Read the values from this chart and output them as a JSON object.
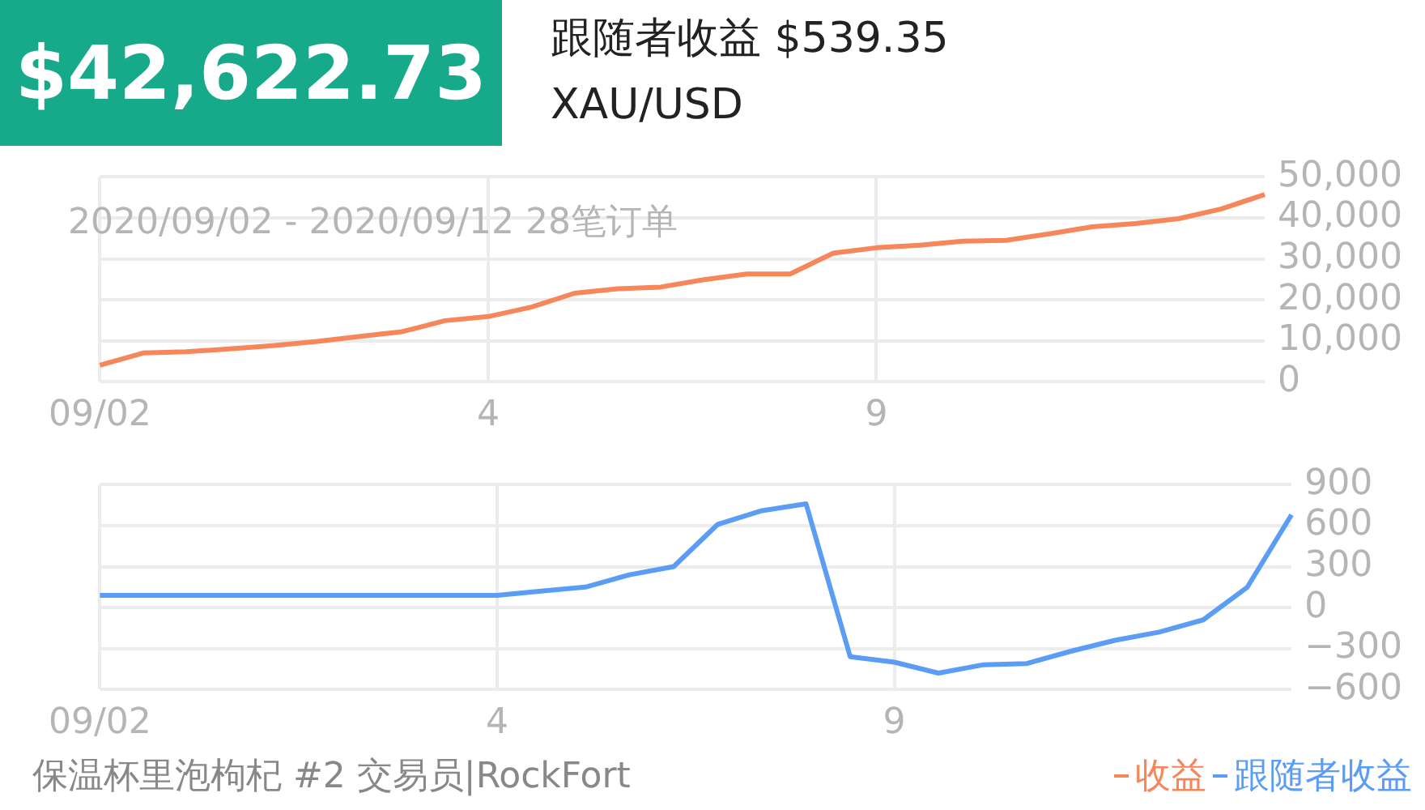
{
  "chart_data": [
    {
      "type": "line",
      "title": "$42,622.73",
      "subtitle": "跟随者收益 $539.35",
      "annotations": [
        "XAU/USD",
        "2020/09/02 - 2020/09/12 28笔订单"
      ],
      "categories": [
        "09/02",
        null,
        null,
        null,
        null,
        null,
        null,
        null,
        null,
        "4",
        null,
        null,
        null,
        null,
        null,
        null,
        null,
        null,
        "9",
        null,
        null,
        null,
        null,
        null,
        null,
        null,
        null,
        null
      ],
      "series": [
        {
          "name": "收益",
          "color": "#f5875a",
          "values": [
            4000,
            7000,
            7300,
            8000,
            8800,
            9800,
            11000,
            12200,
            14900,
            15900,
            18200,
            21600,
            22700,
            23100,
            24900,
            26300,
            26300,
            31400,
            32700,
            33300,
            34300,
            34500,
            36100,
            37800,
            38600,
            39800,
            42200,
            45700
          ]
        }
      ],
      "ylim": [
        0,
        50000
      ],
      "yticks": [
        {
          "value": 0,
          "label": "0"
        },
        {
          "value": 10000,
          "label": "10,000"
        },
        {
          "value": 20000,
          "label": "20,000"
        },
        {
          "value": 30000,
          "label": "30,000"
        },
        {
          "value": 40000,
          "label": "40,000"
        },
        {
          "value": 50000,
          "label": "50,000"
        }
      ],
      "grid": true,
      "legend": "bottom right",
      "marker": "none",
      "line_style": "solid"
    },
    {
      "type": "line",
      "annotations": [
        "保温杯里泡枸杞 #2 交易员|RockFort"
      ],
      "categories": [
        "09/02",
        null,
        null,
        null,
        null,
        null,
        null,
        null,
        null,
        "4",
        null,
        null,
        null,
        null,
        null,
        null,
        null,
        null,
        "9",
        null,
        null,
        null,
        null,
        null,
        null,
        null,
        null,
        null
      ],
      "series": [
        {
          "name": "跟随者收益",
          "color": "#5b9cf5",
          "values": [
            90,
            90,
            90,
            90,
            90,
            90,
            90,
            90,
            90,
            90,
            120,
            150,
            240,
            300,
            610,
            710,
            760,
            -360,
            -400,
            -480,
            -420,
            -410,
            -320,
            -240,
            -180,
            -90,
            150,
            680
          ]
        }
      ],
      "ylim": [
        -600,
        900
      ],
      "yticks": [
        {
          "value": -600,
          "label": "−600"
        },
        {
          "value": -300,
          "label": "−300"
        },
        0,
        300,
        600,
        900
      ],
      "grid": true,
      "legend": "bottom right",
      "marker": "none",
      "line_style": "solid"
    }
  ]
}
